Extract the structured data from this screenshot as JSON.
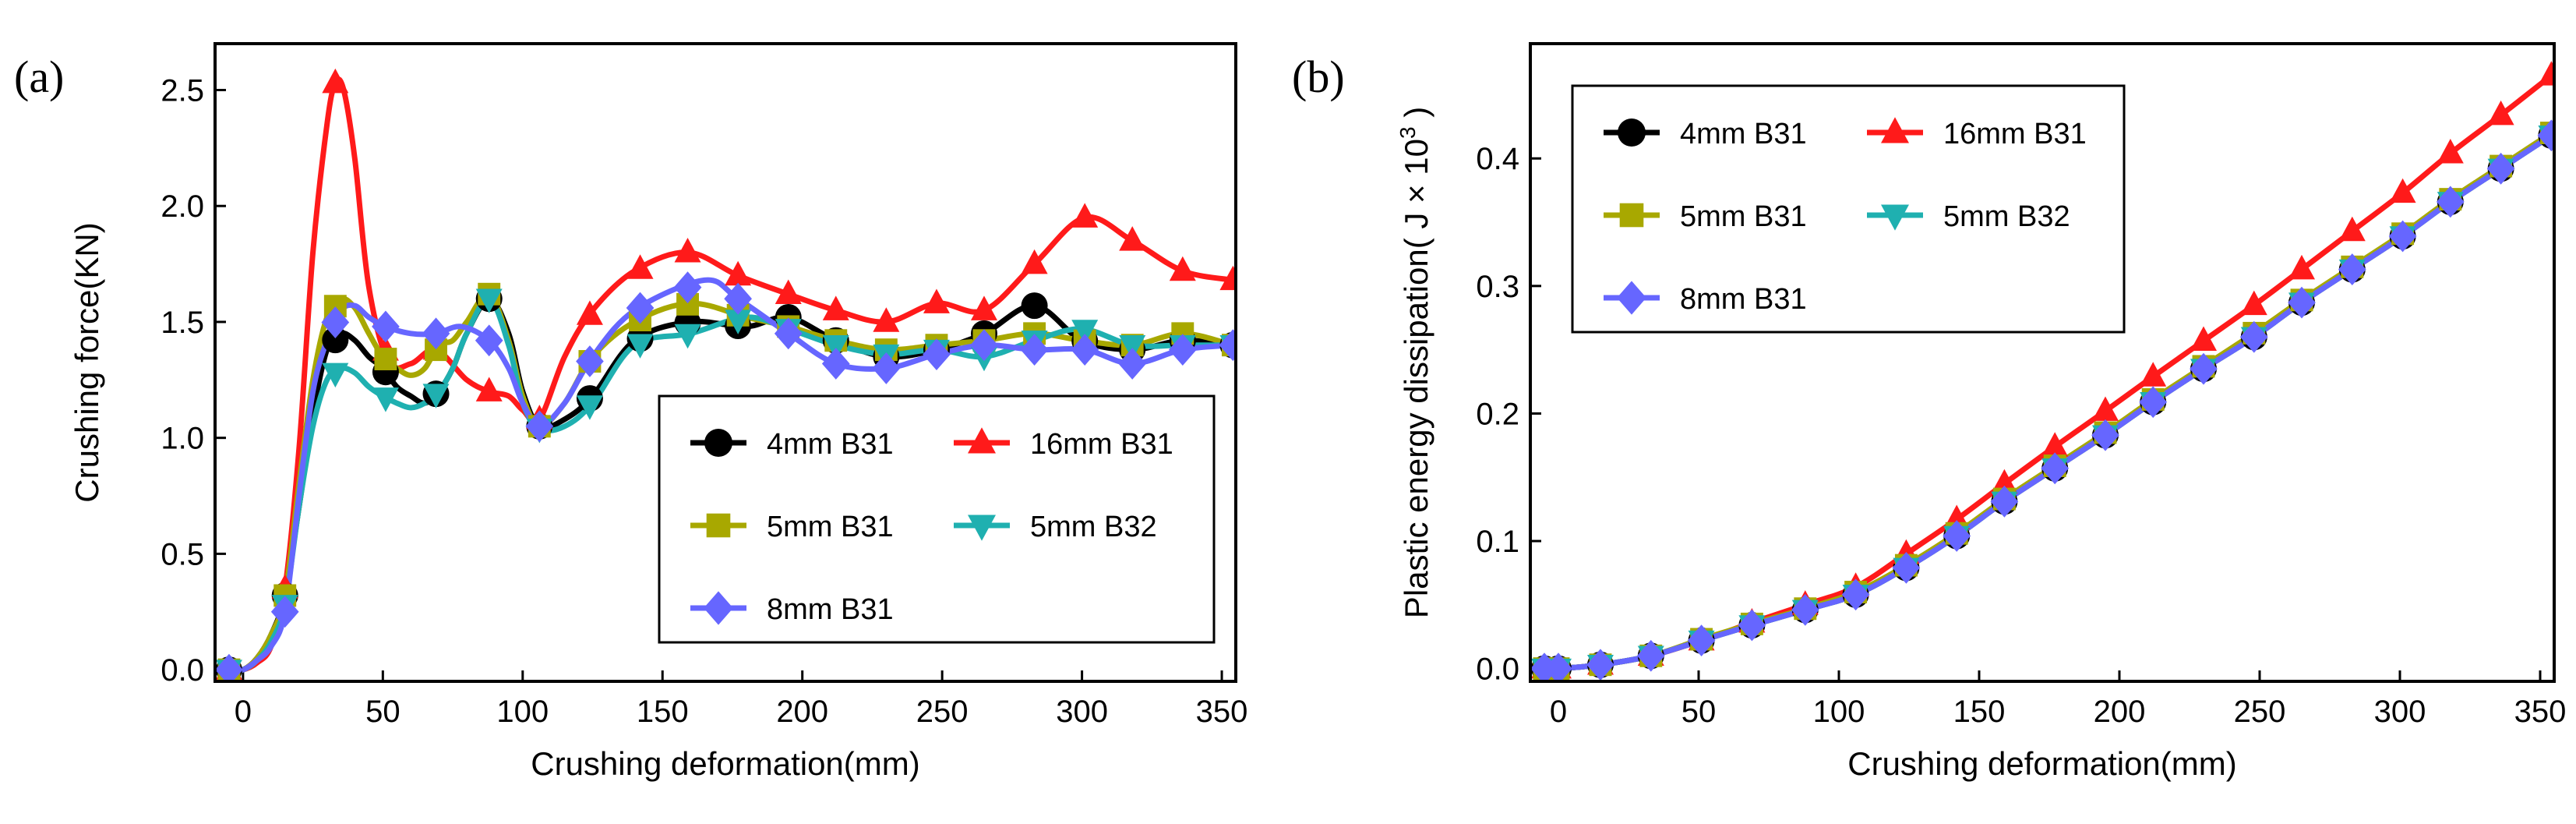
{
  "figure": {
    "panels": [
      {
        "label": "(a)"
      },
      {
        "label": "(b)"
      }
    ]
  },
  "series_style": [
    {
      "name": "4mm B31",
      "color": "#000000",
      "marker": "circle"
    },
    {
      "name": "16mm B31",
      "color": "#ff1a1a",
      "marker": "triangle-up"
    },
    {
      "name": "5mm B31",
      "color": "#a8a800",
      "marker": "square"
    },
    {
      "name": "5mm B32",
      "color": "#1fb0b0",
      "marker": "triangle-down"
    },
    {
      "name": "8mm B31",
      "color": "#6666ff",
      "marker": "diamond"
    }
  ],
  "chart_data": [
    {
      "type": "line",
      "panel": "(a)",
      "title": "",
      "xlabel": "Crushing deformation(mm)",
      "ylabel": "Crushing force(KN)",
      "xlim": [
        -10,
        355
      ],
      "ylim": [
        -0.05,
        2.7
      ],
      "xticks": [
        0,
        50,
        100,
        150,
        200,
        250,
        300,
        350
      ],
      "xticklabels": [
        "0",
        "50",
        "100",
        "150",
        "200",
        "250",
        "300",
        "350"
      ],
      "yticks": [
        0.0,
        0.5,
        1.0,
        1.5,
        2.0,
        2.5
      ],
      "yticklabels": [
        "0.0",
        "0.5",
        "1.0",
        "1.5",
        "2.0",
        "2.5"
      ],
      "legend": "lower-right",
      "series": [
        {
          "name": "4mm B31",
          "x": [
            -5,
            0,
            5,
            10,
            15,
            20,
            25,
            30,
            35,
            40,
            45,
            50,
            55,
            60,
            65,
            70,
            75,
            80,
            88,
            95,
            100,
            106,
            115,
            125,
            140,
            160,
            180,
            195,
            212,
            230,
            248,
            265,
            283,
            300,
            318,
            336,
            354
          ],
          "y": [
            0.0,
            0.0,
            0.05,
            0.15,
            0.32,
            0.7,
            1.1,
            1.38,
            1.45,
            1.42,
            1.35,
            1.3,
            1.22,
            1.18,
            1.15,
            1.2,
            1.3,
            1.45,
            1.6,
            1.45,
            1.2,
            1.05,
            1.08,
            1.18,
            1.42,
            1.5,
            1.48,
            1.52,
            1.42,
            1.35,
            1.38,
            1.45,
            1.57,
            1.42,
            1.38,
            1.42,
            1.4
          ],
          "marker_x": [
            -5,
            15,
            33,
            51,
            69,
            88,
            106,
            124,
            142,
            159,
            177,
            195,
            212,
            230,
            248,
            265,
            283,
            301,
            318,
            336,
            354
          ]
        },
        {
          "name": "16mm B31",
          "x": [
            -5,
            0,
            5,
            10,
            15,
            20,
            25,
            30,
            33,
            36,
            40,
            45,
            52,
            60,
            69,
            80,
            88,
            95,
            100,
            106,
            115,
            125,
            140,
            159,
            177,
            195,
            212,
            230,
            248,
            265,
            283,
            301,
            318,
            336,
            354
          ],
          "y": [
            0.0,
            0.0,
            0.03,
            0.1,
            0.35,
            0.95,
            1.8,
            2.35,
            2.53,
            2.5,
            2.2,
            1.65,
            1.33,
            1.32,
            1.38,
            1.25,
            1.2,
            1.18,
            1.12,
            1.08,
            1.35,
            1.55,
            1.72,
            1.8,
            1.7,
            1.62,
            1.55,
            1.5,
            1.58,
            1.55,
            1.75,
            1.95,
            1.85,
            1.72,
            1.68
          ],
          "marker_x": [
            -5,
            15,
            33,
            51,
            69,
            88,
            106,
            124,
            142,
            159,
            177,
            195,
            212,
            230,
            248,
            265,
            283,
            301,
            318,
            336,
            354
          ]
        },
        {
          "name": "5mm B31",
          "x": [
            -5,
            0,
            5,
            10,
            15,
            20,
            25,
            30,
            35,
            40,
            45,
            50,
            55,
            60,
            65,
            70,
            75,
            80,
            88,
            95,
            100,
            106,
            115,
            125,
            140,
            160,
            180,
            195,
            212,
            230,
            248,
            265,
            283,
            300,
            318,
            336,
            354
          ],
          "y": [
            0.0,
            0.0,
            0.05,
            0.15,
            0.32,
            0.8,
            1.25,
            1.52,
            1.6,
            1.56,
            1.45,
            1.35,
            1.3,
            1.27,
            1.3,
            1.4,
            1.42,
            1.5,
            1.62,
            1.42,
            1.18,
            1.05,
            1.15,
            1.35,
            1.5,
            1.58,
            1.52,
            1.48,
            1.42,
            1.38,
            1.4,
            1.42,
            1.45,
            1.42,
            1.4,
            1.45,
            1.4
          ],
          "marker_x": [
            -5,
            15,
            33,
            51,
            69,
            88,
            106,
            124,
            142,
            159,
            177,
            195,
            212,
            230,
            248,
            265,
            283,
            301,
            318,
            336,
            354
          ]
        },
        {
          "name": "5mm B32",
          "x": [
            -5,
            0,
            5,
            10,
            15,
            20,
            25,
            30,
            35,
            40,
            45,
            50,
            55,
            60,
            65,
            70,
            75,
            80,
            88,
            95,
            100,
            106,
            115,
            125,
            140,
            160,
            180,
            195,
            212,
            230,
            248,
            265,
            283,
            300,
            318,
            336,
            354
          ],
          "y": [
            0.0,
            0.0,
            0.04,
            0.12,
            0.28,
            0.7,
            1.05,
            1.25,
            1.3,
            1.28,
            1.22,
            1.18,
            1.15,
            1.13,
            1.15,
            1.2,
            1.3,
            1.45,
            1.6,
            1.4,
            1.15,
            1.04,
            1.05,
            1.15,
            1.4,
            1.45,
            1.52,
            1.47,
            1.4,
            1.36,
            1.38,
            1.35,
            1.42,
            1.47,
            1.4,
            1.4,
            1.4
          ],
          "marker_x": [
            -5,
            15,
            33,
            51,
            69,
            88,
            106,
            124,
            142,
            159,
            177,
            195,
            212,
            230,
            248,
            265,
            283,
            301,
            318,
            336,
            354
          ]
        },
        {
          "name": "8mm B31",
          "x": [
            -5,
            0,
            5,
            10,
            15,
            20,
            25,
            30,
            35,
            40,
            45,
            51,
            60,
            69,
            78,
            88,
            95,
            100,
            106,
            115,
            125,
            140,
            165,
            177,
            195,
            212,
            230,
            248,
            265,
            283,
            301,
            318,
            336,
            354
          ],
          "y": [
            0.0,
            0.0,
            0.04,
            0.1,
            0.25,
            0.75,
            1.2,
            1.42,
            1.55,
            1.57,
            1.52,
            1.48,
            1.45,
            1.45,
            1.48,
            1.42,
            1.3,
            1.15,
            1.05,
            1.15,
            1.35,
            1.55,
            1.68,
            1.6,
            1.45,
            1.32,
            1.3,
            1.36,
            1.4,
            1.38,
            1.38,
            1.32,
            1.38,
            1.4
          ],
          "marker_x": [
            -5,
            15,
            33,
            51,
            69,
            88,
            106,
            124,
            142,
            159,
            177,
            195,
            212,
            230,
            248,
            265,
            283,
            301,
            318,
            336,
            354
          ]
        }
      ]
    },
    {
      "type": "line",
      "panel": "(b)",
      "title": "",
      "xlabel": "Crushing deformation(mm)",
      "ylabel": "Plastic energy dissipation( J × 10",
      "ylabel_superscript": "3",
      "ylabel_suffix": " )",
      "xlim": [
        -10,
        355
      ],
      "ylim": [
        -0.01,
        0.49
      ],
      "xticks": [
        0,
        50,
        100,
        150,
        200,
        250,
        300,
        350
      ],
      "xticklabels": [
        "0",
        "50",
        "100",
        "150",
        "200",
        "250",
        "300",
        "350"
      ],
      "yticks": [
        0.0,
        0.1,
        0.2,
        0.3,
        0.4
      ],
      "yticklabels": [
        "0.0",
        "0.1",
        "0.2",
        "0.3",
        "0.4"
      ],
      "legend": "top-left",
      "series": [
        {
          "name": "4mm B31",
          "x": [
            -5,
            0,
            15,
            33,
            51,
            69,
            88,
            106,
            124,
            142,
            159,
            177,
            195,
            212,
            230,
            248,
            265,
            283,
            301,
            318,
            336,
            354
          ],
          "y": [
            0.0,
            0.0,
            0.003,
            0.01,
            0.022,
            0.034,
            0.046,
            0.058,
            0.079,
            0.104,
            0.131,
            0.157,
            0.183,
            0.209,
            0.235,
            0.26,
            0.287,
            0.313,
            0.339,
            0.366,
            0.392,
            0.418
          ]
        },
        {
          "name": "16mm B31",
          "x": [
            -5,
            0,
            15,
            33,
            51,
            69,
            88,
            106,
            124,
            142,
            159,
            177,
            195,
            212,
            230,
            248,
            265,
            283,
            301,
            318,
            336,
            354
          ],
          "y": [
            0.0,
            0.0,
            0.003,
            0.01,
            0.022,
            0.036,
            0.05,
            0.064,
            0.09,
            0.117,
            0.145,
            0.174,
            0.202,
            0.229,
            0.257,
            0.285,
            0.313,
            0.343,
            0.373,
            0.404,
            0.434,
            0.465
          ]
        },
        {
          "name": "5mm B31",
          "x": [
            -5,
            0,
            15,
            33,
            51,
            69,
            88,
            106,
            124,
            142,
            159,
            177,
            195,
            212,
            230,
            248,
            265,
            283,
            301,
            318,
            336,
            354
          ],
          "y": [
            0.0,
            0.0,
            0.003,
            0.01,
            0.023,
            0.035,
            0.047,
            0.06,
            0.081,
            0.106,
            0.133,
            0.159,
            0.185,
            0.211,
            0.237,
            0.263,
            0.289,
            0.315,
            0.341,
            0.368,
            0.394,
            0.42
          ]
        },
        {
          "name": "5mm B32",
          "x": [
            -5,
            0,
            15,
            33,
            51,
            69,
            88,
            106,
            124,
            142,
            159,
            177,
            195,
            212,
            230,
            248,
            265,
            283,
            301,
            318,
            336,
            354
          ],
          "y": [
            0.0,
            0.0,
            0.003,
            0.01,
            0.022,
            0.034,
            0.046,
            0.058,
            0.079,
            0.104,
            0.131,
            0.157,
            0.183,
            0.209,
            0.235,
            0.26,
            0.287,
            0.313,
            0.339,
            0.366,
            0.392,
            0.418
          ]
        },
        {
          "name": "8mm B31",
          "x": [
            -5,
            0,
            15,
            33,
            51,
            69,
            88,
            106,
            124,
            142,
            159,
            177,
            195,
            212,
            230,
            248,
            265,
            283,
            301,
            318,
            336,
            354
          ],
          "y": [
            0.0,
            0.0,
            0.003,
            0.01,
            0.022,
            0.034,
            0.046,
            0.058,
            0.079,
            0.104,
            0.131,
            0.157,
            0.183,
            0.209,
            0.235,
            0.26,
            0.287,
            0.313,
            0.339,
            0.366,
            0.392,
            0.418
          ]
        }
      ]
    }
  ]
}
